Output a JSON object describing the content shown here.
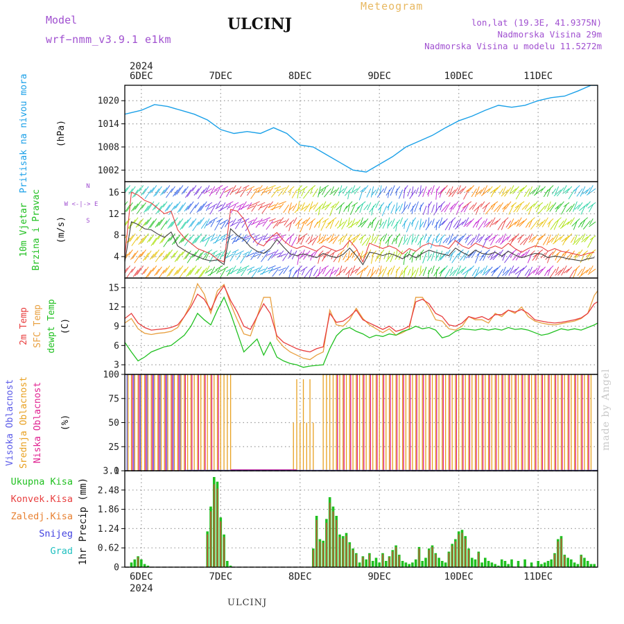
{
  "header": {
    "model_label": "Model",
    "model_name": "wrf−nmm_v3.9.1  e1km",
    "station": "ULCINJ",
    "product": "Meteogram",
    "lonlat": "lon,lat (19.3E, 41.9375N)",
    "elevation": "Nadmorska Visina 29m",
    "model_elevation": "Nadmorska Visina u modelu 11.5272m",
    "watermark": "made by Angel",
    "footer_station": "ULCINJ"
  },
  "time_axis": {
    "year_label": "2024",
    "day_labels": [
      "6DEC",
      "7DEC",
      "8DEC",
      "9DEC",
      "10DEC",
      "11DEC"
    ],
    "start_hour_offset": -5,
    "end_hour_offset": 138
  },
  "colors": {
    "pressure": "#1aa0e8",
    "temp_2m": "#e83c3c",
    "temp_sfc": "#e8a040",
    "dewpoint": "#20c020",
    "cloud_high": "#5a5ae8",
    "cloud_mid": "#e8a020",
    "cloud_low": "#e02090",
    "precip_total": "#20c020",
    "precip_conv": "#e84040",
    "precip_grid": "#e88030",
    "snow": "#4040e0",
    "graupel": "#20c0c0",
    "wind_speed": "#404040",
    "wind_gust": "#e84040"
  },
  "chart_data": [
    {
      "type": "line",
      "id": "pressure",
      "ylabel_lines": [
        "Pritisak na nivou mora",
        "(hPa)"
      ],
      "yticks": [
        1002,
        1008,
        1014,
        1020
      ],
      "ylim": [
        999,
        1024
      ],
      "series": [
        {
          "x": [
            -5,
            0,
            4,
            8,
            12,
            16,
            20,
            24,
            28,
            32,
            36,
            40,
            44,
            48,
            52,
            56,
            60,
            64,
            68,
            72,
            76,
            80,
            84,
            88,
            92,
            96,
            100,
            104,
            108,
            112,
            116,
            120,
            124,
            128,
            132,
            136,
            138
          ],
          "values": [
            1016.5,
            1017.5,
            1019,
            1018.5,
            1017.5,
            1016.5,
            1015,
            1012.5,
            1011.5,
            1012,
            1011.5,
            1013,
            1011.5,
            1008.5,
            1008,
            1006,
            1004,
            1002,
            1001.5,
            1003.5,
            1005.5,
            1008,
            1009.5,
            1011,
            1013,
            1014.8,
            1016,
            1017.5,
            1018.8,
            1018.3,
            1018.8,
            1020,
            1020.8,
            1021.2,
            1022.5,
            1024,
            1024
          ]
        }
      ]
    },
    {
      "type": "scatter",
      "id": "wind",
      "ylabel_lines": [
        "10m Vjetar",
        "Brzina i Pravac",
        "(m/s)"
      ],
      "compass": [
        "N",
        "W  <-|->  E",
        "S"
      ],
      "yticks": [
        4,
        8,
        12,
        16
      ],
      "ylim": [
        0,
        18
      ],
      "speed": {
        "x": [
          -5,
          -3,
          -1,
          1,
          3,
          5,
          7,
          9,
          11,
          13,
          15,
          17,
          19,
          21,
          23,
          25,
          27,
          29,
          31,
          33,
          35,
          37,
          39,
          41,
          43,
          45,
          47,
          49,
          51,
          53,
          55,
          57,
          59,
          61,
          63,
          65,
          67,
          69,
          71,
          73,
          75,
          77,
          79,
          81,
          83,
          85,
          87,
          89,
          91,
          93,
          95,
          97,
          99,
          101,
          103,
          105,
          107,
          109,
          111,
          113,
          115,
          117,
          119,
          121,
          123,
          125,
          127,
          129,
          131,
          133,
          135,
          137
        ],
        "values": [
          3,
          10.5,
          10,
          9.2,
          9,
          8.2,
          7.6,
          8.6,
          6,
          5.2,
          4.5,
          4,
          3.5,
          3.2,
          3.4,
          2.5,
          9.2,
          8,
          7.2,
          5.8,
          5,
          4.6,
          5.5,
          7.2,
          5.8,
          4.5,
          4.2,
          4.5,
          4.2,
          3.8,
          4.6,
          4.1,
          3.8,
          4.4,
          5.6,
          4.2,
          2.5,
          4.8,
          4.6,
          4.2,
          4.6,
          4.2,
          3.6,
          4.4,
          3.8,
          4.6,
          5.2,
          4.8,
          4.5,
          4.2,
          5.6,
          4.8,
          4.2,
          5.2,
          4.6,
          4.4,
          4.8,
          4.1,
          5,
          4.3,
          3.8,
          4.2,
          4.6,
          4.5,
          3.8,
          4.1,
          3.9,
          3.6,
          3.4,
          3.2,
          3.6,
          3.8
        ]
      },
      "gust": {
        "x": [
          -5,
          -3,
          -1,
          1,
          3,
          5,
          7,
          9,
          11,
          13,
          15,
          17,
          19,
          21,
          23,
          25,
          27,
          29,
          31,
          33,
          35,
          37,
          39,
          41,
          43,
          45,
          47,
          49,
          51,
          53,
          55,
          57,
          59,
          61,
          63,
          65,
          67,
          69,
          71,
          73,
          75,
          77,
          79,
          81,
          83,
          85,
          87,
          89,
          91,
          93,
          95,
          97,
          99,
          101,
          103,
          105,
          107,
          109,
          111,
          113,
          115,
          117,
          119,
          121,
          123,
          125,
          127,
          129,
          131,
          133,
          135,
          137
        ],
        "values": [
          4,
          16,
          15.5,
          14.5,
          14,
          13,
          12,
          12.5,
          9,
          7.5,
          6.5,
          5.5,
          5,
          4.5,
          3.5,
          3,
          12.8,
          12.5,
          11,
          8,
          6.5,
          6,
          7.5,
          8.5,
          7,
          6,
          5.5,
          6,
          5.5,
          5,
          6,
          5.5,
          5,
          5.5,
          7,
          5.5,
          3,
          6.5,
          6,
          5.5,
          6,
          5.5,
          4.5,
          5.5,
          5,
          6,
          6.5,
          6,
          6,
          5.5,
          7,
          6,
          5.5,
          6.5,
          6,
          5.5,
          6,
          5.5,
          6.5,
          5.5,
          4.8,
          5.5,
          6,
          5.8,
          5,
          5.5,
          5,
          4.8,
          4.5,
          4.2,
          4.6,
          4.8
        ]
      }
    },
    {
      "type": "line",
      "id": "temperature",
      "ylabel_lines": [
        "2m Temp",
        "SFC Temp",
        "dewpt Temp",
        "(C)"
      ],
      "yticks": [
        3,
        6,
        9,
        12,
        15
      ],
      "ylim": [
        1.5,
        16.5
      ],
      "series": [
        {
          "name": "2m Temp",
          "x": [
            -5,
            -3,
            -1,
            1,
            3,
            5,
            7,
            9,
            11,
            13,
            15,
            17,
            19,
            21,
            23,
            25,
            27,
            29,
            31,
            33,
            35,
            37,
            39,
            41,
            43,
            45,
            47,
            49,
            51,
            53,
            55,
            57,
            59,
            61,
            63,
            65,
            67,
            69,
            71,
            73,
            75,
            77,
            79,
            81,
            83,
            85,
            87,
            89,
            91,
            93,
            95,
            97,
            99,
            101,
            103,
            105,
            107,
            109,
            111,
            113,
            115,
            117,
            119,
            121,
            123,
            125,
            127,
            129,
            131,
            133,
            135,
            137,
            138
          ],
          "values": [
            10.2,
            11,
            9.5,
            8.8,
            8.4,
            8.5,
            8.6,
            8.8,
            9.2,
            10.5,
            12,
            14,
            13.2,
            11.5,
            13.8,
            15.3,
            13,
            11.2,
            9,
            8.5,
            10.5,
            12.5,
            11,
            7.5,
            6.5,
            6,
            5.5,
            5.2,
            5,
            5.5,
            5.8,
            11,
            9.6,
            9.8,
            10.5,
            11.5,
            10,
            9.5,
            9,
            8.5,
            9,
            8.2,
            8.5,
            9,
            12.8,
            13.2,
            12.5,
            11,
            10.5,
            9.2,
            9,
            9.5,
            10.5,
            10.2,
            10.5,
            10,
            10.8,
            10.8,
            11.5,
            11.2,
            11.6,
            11,
            10,
            9.8,
            9.6,
            9.5,
            9.6,
            9.8,
            10,
            10.3,
            11,
            12.5,
            12.8
          ]
        },
        {
          "name": "SFC Temp",
          "x": [
            -5,
            -3,
            -1,
            1,
            3,
            5,
            7,
            9,
            11,
            13,
            15,
            17,
            19,
            21,
            23,
            25,
            27,
            29,
            31,
            33,
            35,
            37,
            39,
            41,
            43,
            45,
            47,
            49,
            51,
            53,
            55,
            57,
            59,
            61,
            63,
            65,
            67,
            69,
            71,
            73,
            75,
            77,
            79,
            81,
            83,
            85,
            87,
            89,
            91,
            93,
            95,
            97,
            99,
            101,
            103,
            105,
            107,
            109,
            111,
            113,
            115,
            117,
            119,
            121,
            123,
            125,
            127,
            129,
            131,
            133,
            135,
            137,
            138
          ],
          "values": [
            9.5,
            10.2,
            8.6,
            7.9,
            7.7,
            7.9,
            8,
            8.2,
            8.8,
            10.5,
            12.5,
            15.6,
            14,
            11,
            14.5,
            15.5,
            12.5,
            10,
            7.8,
            7.5,
            10.5,
            13.5,
            13.5,
            7,
            5.8,
            5,
            4.5,
            4,
            3.8,
            4.5,
            5,
            11.5,
            9.2,
            9,
            10,
            11.8,
            10.2,
            9.2,
            8.6,
            8,
            8.6,
            7.6,
            8,
            8.6,
            13.5,
            13.5,
            12,
            10,
            9.8,
            8.6,
            8.4,
            9,
            10.5,
            10,
            10,
            9.5,
            11,
            10.5,
            11.5,
            11,
            12,
            10.5,
            9.8,
            9.5,
            9.3,
            9.2,
            9.4,
            9.6,
            9.8,
            10.2,
            11,
            13.8,
            14.5
          ]
        },
        {
          "name": "dewpt Temp",
          "x": [
            -5,
            -3,
            -1,
            1,
            3,
            5,
            7,
            9,
            11,
            13,
            15,
            17,
            19,
            21,
            23,
            25,
            27,
            29,
            31,
            33,
            35,
            37,
            39,
            41,
            43,
            45,
            47,
            49,
            51,
            53,
            55,
            57,
            59,
            61,
            63,
            65,
            67,
            69,
            71,
            73,
            75,
            77,
            79,
            81,
            83,
            85,
            87,
            89,
            91,
            93,
            95,
            97,
            99,
            101,
            103,
            105,
            107,
            109,
            111,
            113,
            115,
            117,
            119,
            121,
            123,
            125,
            127,
            129,
            131,
            133,
            135,
            137,
            138
          ],
          "values": [
            6.5,
            5,
            3.6,
            4.2,
            5,
            5.4,
            5.8,
            6,
            6.8,
            7.6,
            9,
            11,
            10,
            9.2,
            11.5,
            13.5,
            11,
            8,
            5,
            6,
            7,
            4.5,
            6.5,
            4.2,
            3.6,
            3.2,
            3,
            2.6,
            2.8,
            2.9,
            3,
            5.5,
            7.5,
            8.5,
            8.8,
            8.2,
            7.8,
            7.2,
            7.6,
            7.4,
            7.8,
            7.6,
            8.2,
            8.5,
            9,
            8.6,
            8.8,
            8.4,
            7.2,
            7.5,
            8.2,
            8.6,
            8.5,
            8.4,
            8.6,
            8.4,
            8.6,
            8.4,
            8.8,
            8.5,
            8.6,
            8.4,
            8,
            7.6,
            7.8,
            8.2,
            8.6,
            8.4,
            8.6,
            8.4,
            8.8,
            9.2,
            9.5
          ]
        }
      ]
    },
    {
      "type": "bar",
      "id": "clouds",
      "ylabel_lines": [
        "Visoka Oblacnost",
        "Srednja Oblacnost",
        "Niska Oblacnost",
        "(%)"
      ],
      "yticks": [
        0,
        25,
        50,
        75,
        100
      ],
      "ylim": [
        0,
        100
      ],
      "high_full_range": [
        -4,
        13
      ],
      "mid_full_ranges": [
        [
          -4,
          27
        ],
        [
          46,
          52
        ],
        [
          55,
          136
        ]
      ],
      "low_full_ranges": [
        [
          -4,
          24
        ],
        [
          58,
          136
        ]
      ],
      "notes": "Cloud fractions switch between 0 and 100% nearly every hour; rendered as hourly bars."
    },
    {
      "type": "bar",
      "id": "precip",
      "ylabel_lines": [
        "1hr Precip (mm)"
      ],
      "legend": [
        "Ukupna Kisa",
        "Konvek.Kisa",
        "Zaledj.Kisa",
        "Snijeg",
        "Grad"
      ],
      "yticks": [
        0,
        0.62,
        1.24,
        1.86,
        2.48,
        3.1
      ],
      "ylim": [
        0,
        3.1
      ],
      "x": [
        -3,
        -2,
        -1,
        0,
        1,
        2,
        20,
        21,
        22,
        23,
        24,
        25,
        26,
        27,
        52,
        53,
        54,
        55,
        56,
        57,
        58,
        59,
        60,
        61,
        62,
        63,
        64,
        65,
        66,
        67,
        68,
        69,
        70,
        71,
        72,
        73,
        74,
        75,
        76,
        77,
        78,
        79,
        80,
        81,
        82,
        83,
        84,
        85,
        86,
        87,
        88,
        89,
        90,
        91,
        92,
        93,
        94,
        95,
        96,
        97,
        98,
        99,
        100,
        101,
        102,
        103,
        104,
        105,
        106,
        107,
        108,
        109,
        110,
        111,
        112,
        114,
        116,
        118,
        120,
        121,
        122,
        123,
        124,
        125,
        126,
        127,
        128,
        129,
        130,
        131,
        132,
        133,
        134,
        135,
        136,
        137
      ],
      "values": [
        0.15,
        0.25,
        0.35,
        0.25,
        0.1,
        0.05,
        1.15,
        1.95,
        2.9,
        2.75,
        1.6,
        1.05,
        0.2,
        0.05,
        0.6,
        1.65,
        0.9,
        0.85,
        1.55,
        2.25,
        1.95,
        1.65,
        1.05,
        1.0,
        1.1,
        0.8,
        0.6,
        0.45,
        0.15,
        0.35,
        0.25,
        0.45,
        0.2,
        0.3,
        0.15,
        0.45,
        0.2,
        0.35,
        0.55,
        0.7,
        0.4,
        0.2,
        0.15,
        0.1,
        0.15,
        0.25,
        0.65,
        0.2,
        0.3,
        0.6,
        0.7,
        0.45,
        0.3,
        0.2,
        0.15,
        0.5,
        0.75,
        0.9,
        1.15,
        1.2,
        1.0,
        0.6,
        0.3,
        0.25,
        0.5,
        0.15,
        0.3,
        0.2,
        0.15,
        0.1,
        0.05,
        0.25,
        0.2,
        0.1,
        0.25,
        0.2,
        0.25,
        0.15,
        0.2,
        0.1,
        0.15,
        0.2,
        0.25,
        0.45,
        0.9,
        1.0,
        0.4,
        0.3,
        0.25,
        0.15,
        0.1,
        0.4,
        0.3,
        0.2,
        0.1,
        0.1
      ]
    }
  ]
}
